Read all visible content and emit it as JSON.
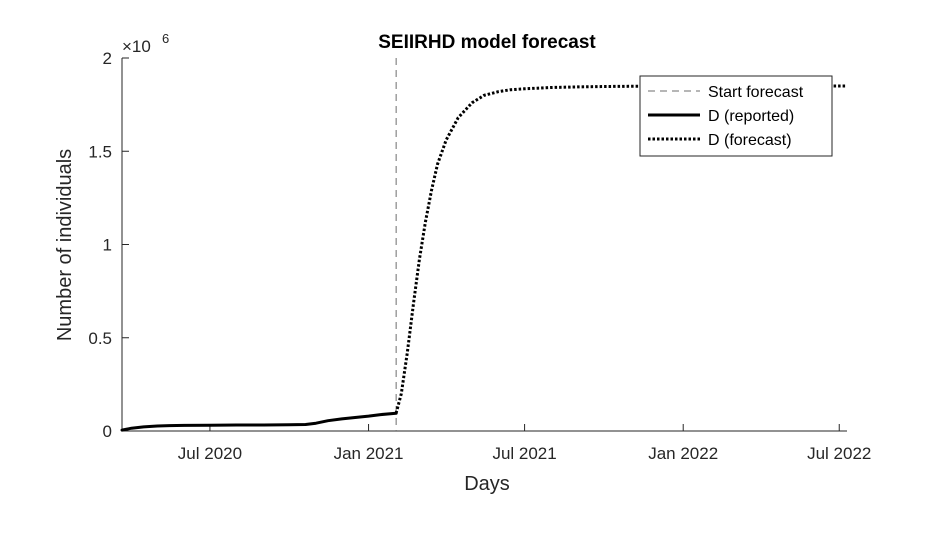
{
  "chart_data": {
    "type": "line",
    "title": "SEIIRHD model forecast",
    "xlabel": "Days",
    "ylabel": "Number of individuals",
    "y_exponent_label": "×10",
    "y_exponent_power": "6",
    "xlim": [
      "2020-03-21",
      "2022-07-10"
    ],
    "ylim": [
      0,
      2000000
    ],
    "x_ticks": [
      {
        "date": "2020-07-01",
        "label": "Jul 2020"
      },
      {
        "date": "2021-01-01",
        "label": "Jan 2021"
      },
      {
        "date": "2021-07-01",
        "label": "Jul 2021"
      },
      {
        "date": "2022-01-01",
        "label": "Jan 2022"
      },
      {
        "date": "2022-07-01",
        "label": "Jul 2022"
      }
    ],
    "y_ticks": [
      {
        "value": 0,
        "label": "0"
      },
      {
        "value": 500000,
        "label": "0.5"
      },
      {
        "value": 1000000,
        "label": "1"
      },
      {
        "value": 1500000,
        "label": "1.5"
      },
      {
        "value": 2000000,
        "label": "2"
      }
    ],
    "grid": false,
    "legend_position": "top-right",
    "start_forecast": "2021-02-02",
    "series": [
      {
        "name": "D (reported)",
        "style": "solid",
        "color": "#000000",
        "x": [
          "2020-03-21",
          "2020-04-01",
          "2020-04-15",
          "2020-05-01",
          "2020-05-15",
          "2020-06-01",
          "2020-07-01",
          "2020-08-01",
          "2020-09-01",
          "2020-10-01",
          "2020-10-20",
          "2020-11-01",
          "2020-11-15",
          "2020-12-01",
          "2020-12-15",
          "2021-01-01",
          "2021-01-15",
          "2021-02-02"
        ],
        "y": [
          5000,
          15000,
          22000,
          27000,
          29000,
          30000,
          31000,
          32000,
          32000,
          33000,
          35000,
          42000,
          55000,
          65000,
          72000,
          80000,
          88000,
          95000
        ]
      },
      {
        "name": "D (forecast)",
        "style": "dotted",
        "color": "#000000",
        "x": [
          "2021-02-02",
          "2021-02-08",
          "2021-02-15",
          "2021-02-22",
          "2021-03-01",
          "2021-03-08",
          "2021-03-15",
          "2021-03-22",
          "2021-04-01",
          "2021-04-15",
          "2021-05-01",
          "2021-05-15",
          "2021-06-01",
          "2021-06-15",
          "2021-07-01",
          "2021-08-01",
          "2021-09-01",
          "2021-10-01",
          "2021-11-01",
          "2022-01-01",
          "2022-03-01",
          "2022-05-01",
          "2022-07-10"
        ],
        "y": [
          95000,
          200000,
          420000,
          680000,
          920000,
          1120000,
          1290000,
          1430000,
          1560000,
          1680000,
          1760000,
          1800000,
          1820000,
          1830000,
          1835000,
          1842000,
          1845000,
          1847000,
          1848000,
          1850000,
          1850000,
          1850000,
          1850000
        ]
      }
    ],
    "legend_entries": [
      {
        "label": "Start forecast",
        "style": "dashed",
        "color": "#6e6e6e"
      },
      {
        "label": "D (reported)",
        "style": "solid",
        "color": "#000000"
      },
      {
        "label": "D (forecast)",
        "style": "dotted",
        "color": "#000000"
      }
    ]
  }
}
